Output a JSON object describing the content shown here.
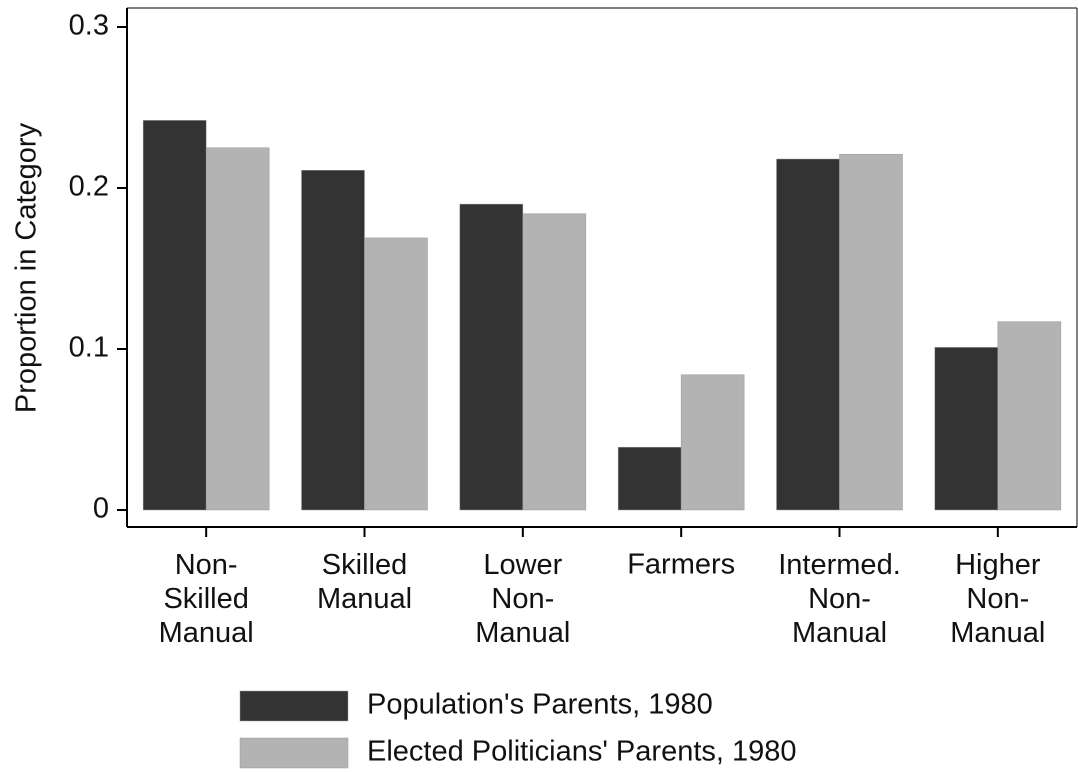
{
  "chart_data": {
    "type": "bar",
    "ylabel": "Proportion in Category",
    "categories": [
      "Non-\nSkilled\nManual",
      "Skilled\nManual",
      "Lower\nNon-\nManual",
      "Farmers",
      "Intermed.\nNon-\nManual",
      "Higher\nNon-\nManual"
    ],
    "series": [
      {
        "name": "Population's Parents, 1980",
        "color": "#333333",
        "values": [
          0.242,
          0.211,
          0.19,
          0.039,
          0.218,
          0.101
        ]
      },
      {
        "name": "Elected Politicians' Parents, 1980",
        "color": "#b3b3b3",
        "values": [
          0.225,
          0.169,
          0.184,
          0.084,
          0.221,
          0.117
        ]
      }
    ],
    "ylim": [
      0,
      0.3
    ],
    "yticks": [
      0,
      0.1,
      0.2,
      0.3
    ]
  }
}
